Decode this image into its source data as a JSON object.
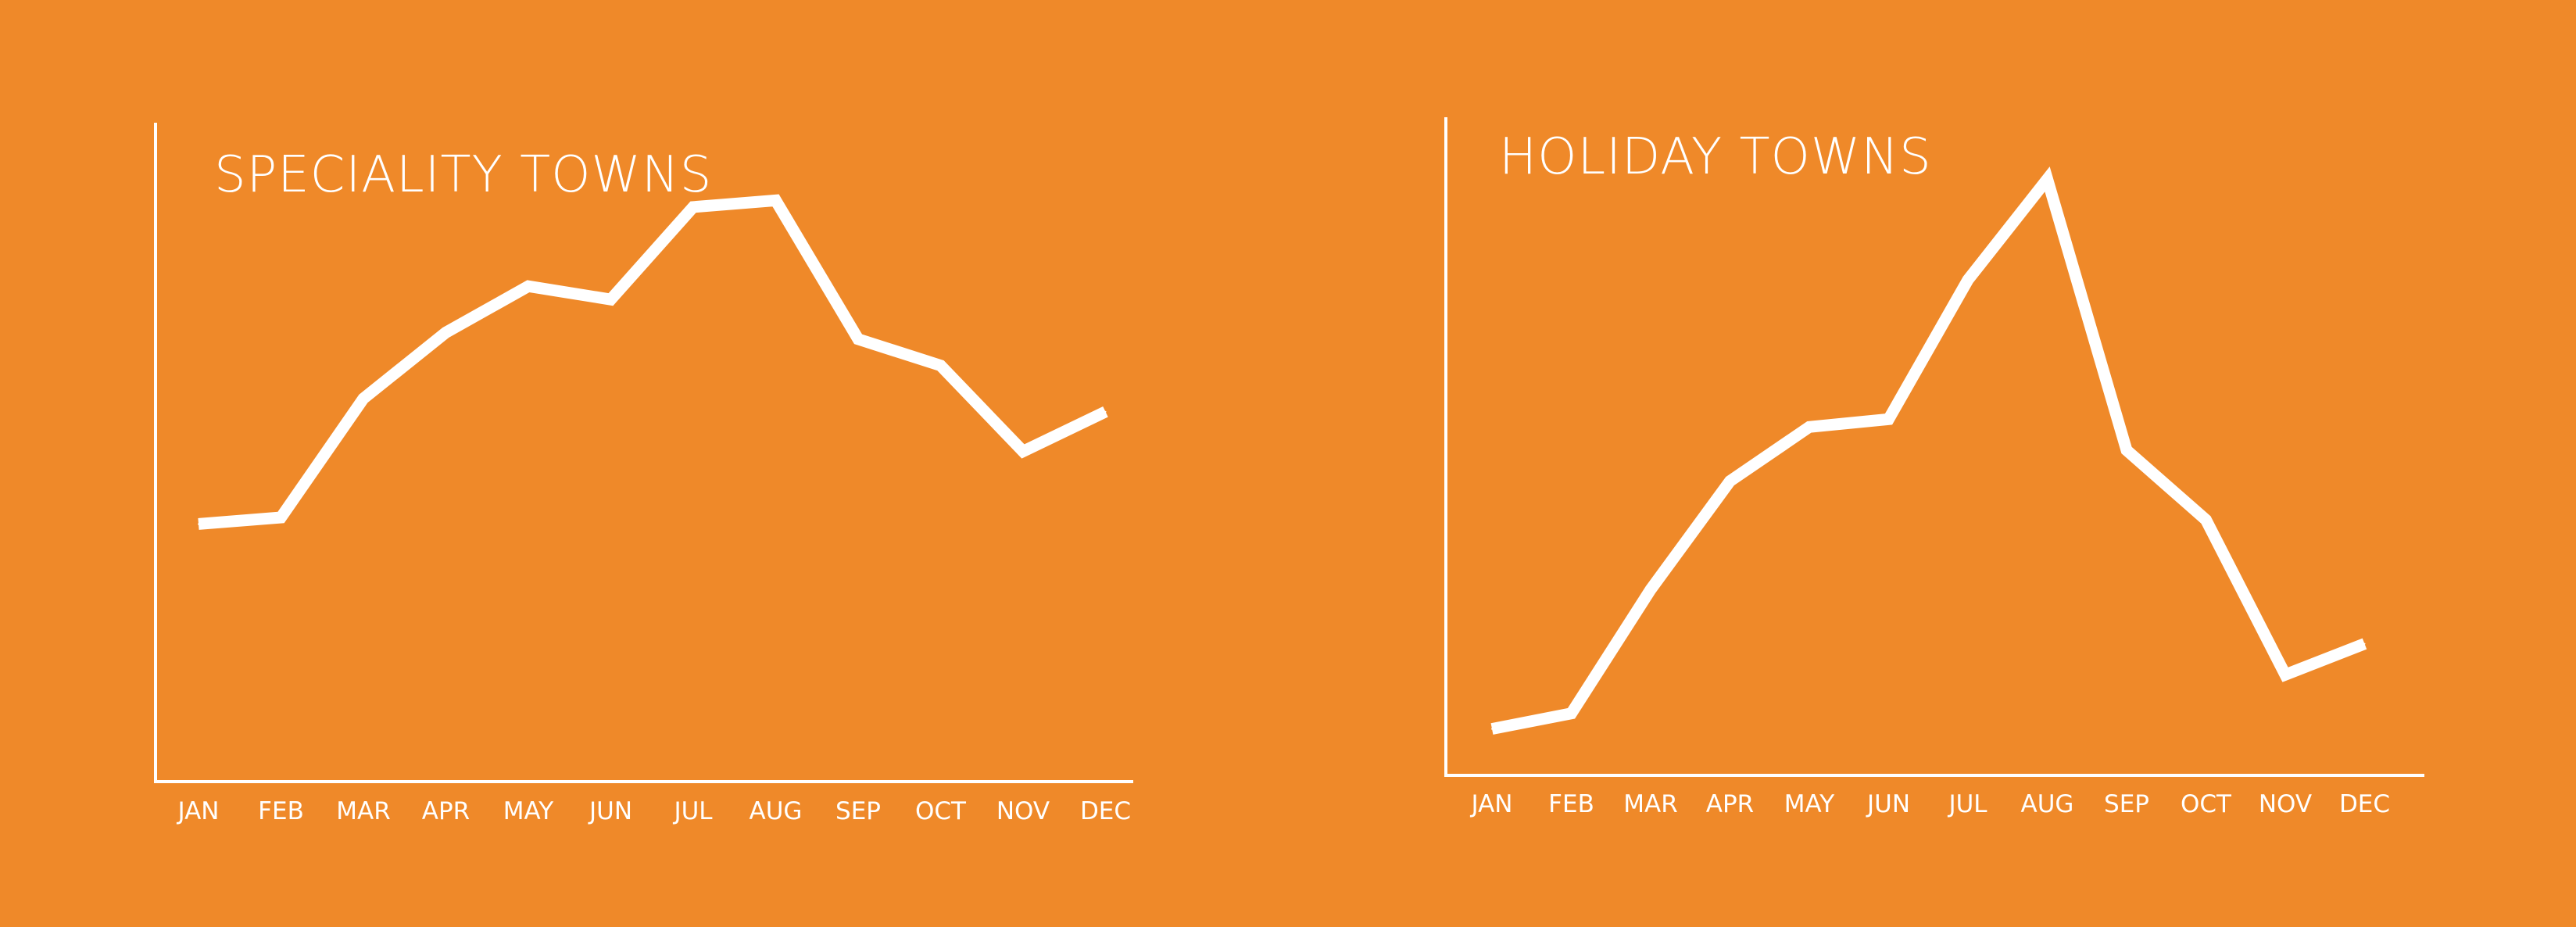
{
  "background_color": "#ef8929",
  "line_color": "#ffffff",
  "chart_data": [
    {
      "type": "line",
      "title": "SPECIALITY TOWNS",
      "xlabel": "",
      "ylabel": "",
      "categories": [
        "JAN",
        "FEB",
        "MAR",
        "APR",
        "MAY",
        "JUN",
        "JUL",
        "AUG",
        "SEP",
        "OCT",
        "NOV",
        "DEC"
      ],
      "series": [
        {
          "values": [
            3.9,
            4.0,
            5.8,
            6.8,
            7.5,
            7.3,
            8.7,
            8.8,
            6.7,
            6.3,
            5.0,
            5.6
          ]
        }
      ],
      "ylim": [
        0,
        10
      ],
      "grid": false,
      "legend": "none"
    },
    {
      "type": "line",
      "title": "HOLIDAY TOWNS",
      "xlabel": "",
      "ylabel": "",
      "categories": [
        "JAN",
        "FEB",
        "MAR",
        "APR",
        "MAY",
        "JUN",
        "JUL",
        "AUG",
        "SEP",
        "OCT",
        "NOV",
        "DEC"
      ],
      "series": [
        {
          "values": [
            0.6,
            0.8,
            2.4,
            3.8,
            4.5,
            4.6,
            6.4,
            7.7,
            4.2,
            3.3,
            1.3,
            1.7
          ]
        }
      ],
      "ylim": [
        0,
        8.5
      ],
      "grid": false,
      "legend": "none"
    }
  ]
}
